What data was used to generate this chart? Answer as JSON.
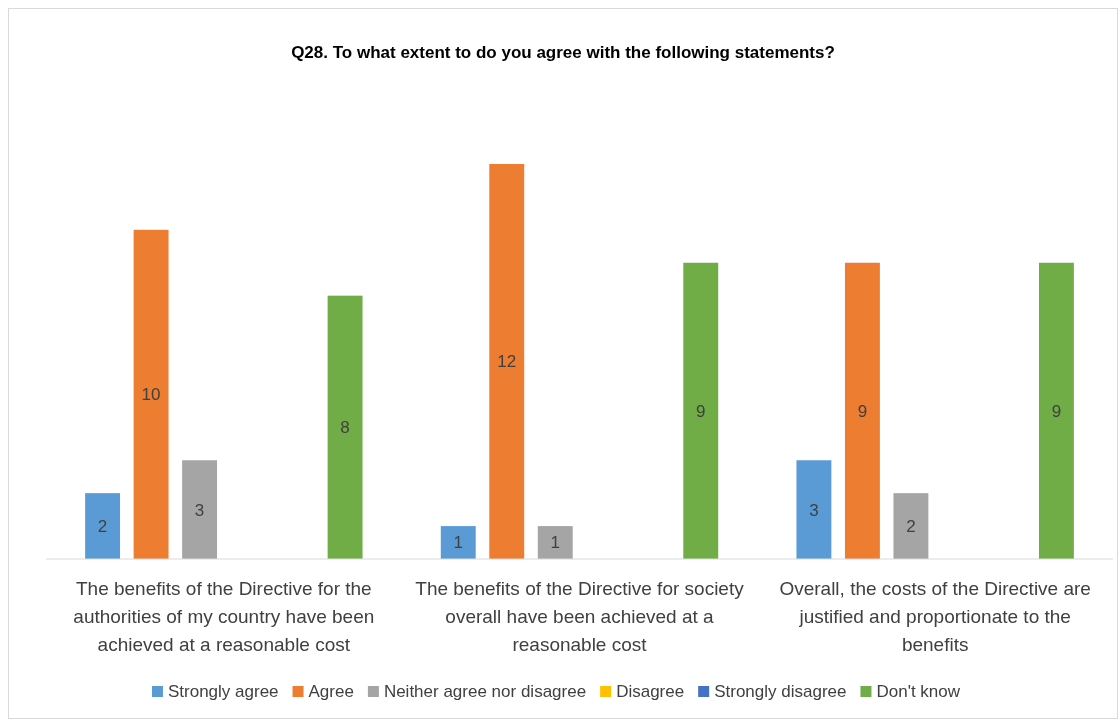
{
  "chart_data": {
    "type": "bar",
    "title": "Q28. To what extent to do you agree with the following statements?",
    "categories": [
      "The benefits of the Directive for the authorities of my country have been achieved at a reasonable cost",
      "The benefits of the Directive for society overall have been achieved at a reasonable cost",
      "Overall, the costs of the Directive are justified and proportionate to the benefits"
    ],
    "series": [
      {
        "name": "Strongly agree",
        "color": "#5b9bd5",
        "values": [
          2,
          1,
          3
        ],
        "value_labels": [
          "2",
          "1",
          "3"
        ]
      },
      {
        "name": "Agree",
        "color": "#ed7d31",
        "values": [
          10,
          12,
          9
        ],
        "value_labels": [
          "10",
          "12",
          "9"
        ]
      },
      {
        "name": "Neither agree nor disagree",
        "color": "#a5a5a5",
        "values": [
          3,
          1,
          2
        ],
        "value_labels": [
          "3",
          "1",
          "2"
        ]
      },
      {
        "name": "Disagree",
        "color": "#ffc000",
        "values": [
          0,
          0,
          0
        ],
        "value_labels": [
          null,
          null,
          null
        ]
      },
      {
        "name": "Strongly disagree",
        "color": "#4472c4",
        "values": [
          0,
          0,
          0
        ],
        "value_labels": [
          null,
          null,
          null
        ]
      },
      {
        "name": "Don't know",
        "color": "#70ad47",
        "values": [
          8,
          9,
          9
        ],
        "value_labels": [
          "8",
          "9",
          "9"
        ]
      }
    ],
    "tick_labels": "x",
    "legend": "bottom"
  }
}
